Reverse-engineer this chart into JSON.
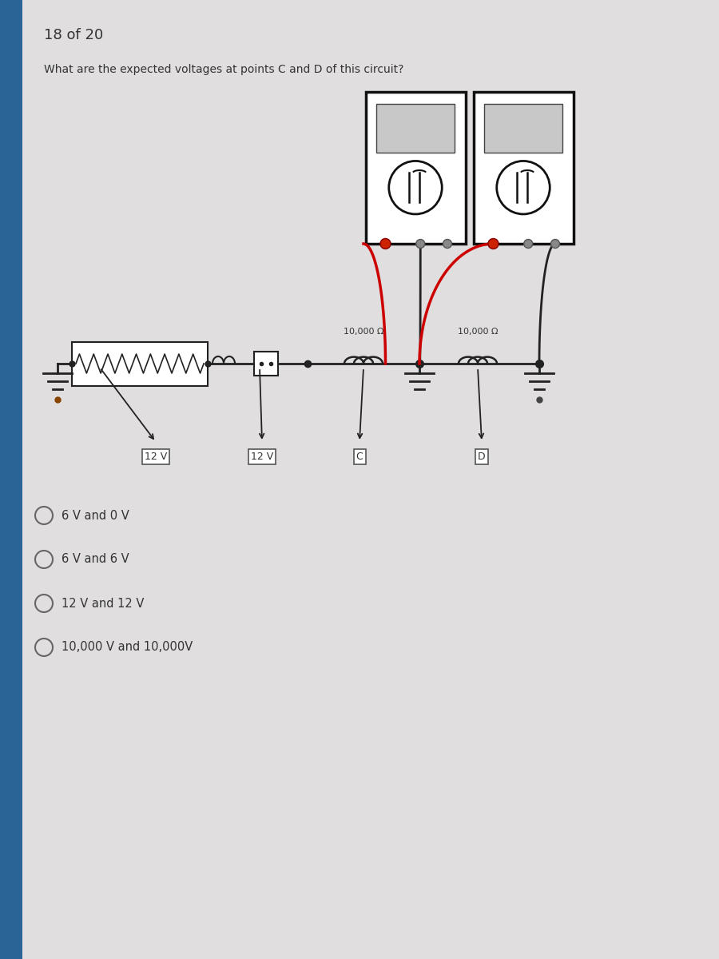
{
  "page_number": "18 of 20",
  "question": "What are the expected voltages at points C and D of this circuit?",
  "bg_color": "#e0dede",
  "left_panel_color": "#2a6496",
  "answer_choices": [
    "6 V and 0 V",
    "6 V and 6 V",
    "12 V and 12 V",
    "10,000 V and 10,000V"
  ],
  "circuit_labels": {
    "resistor1": "10,000 Ω",
    "resistor2": "10,000 Ω",
    "volt1": "12 V",
    "volt2": "12 V",
    "point_c": "C",
    "point_d": "D"
  },
  "wire_color": "#222222",
  "red_wire_color": "#cc0000",
  "text_color": "#333333",
  "circle_color": "#666666",
  "meter_border": "#222222",
  "meter_bg": "#ffffff",
  "meter_display_bg": "#cccccc",
  "ground_color": "#333333"
}
